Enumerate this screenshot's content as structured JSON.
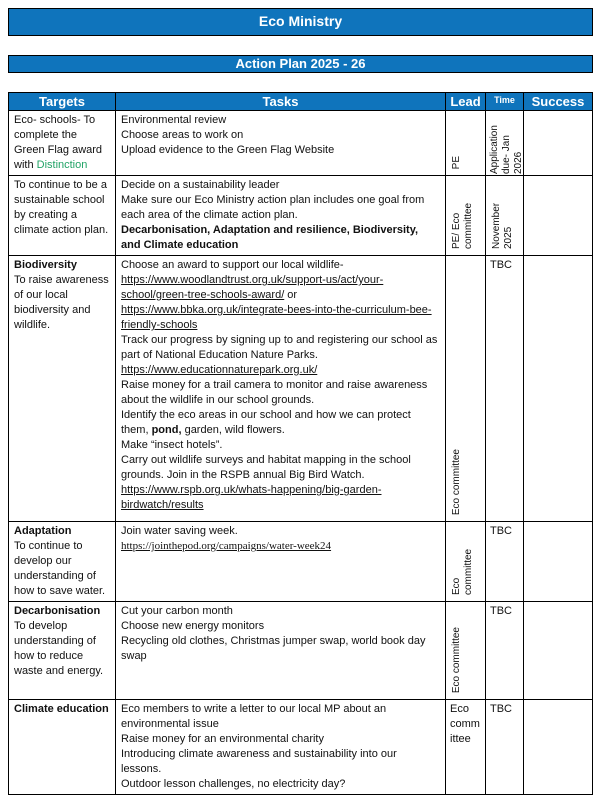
{
  "header": {
    "title": "Eco Ministry",
    "subtitle": "Action Plan 2025 - 26"
  },
  "colors": {
    "bar_blue": "#0f74bc",
    "highlight_green": "#21a366",
    "border_black": "#000000",
    "header_text": "#ffffff"
  },
  "table": {
    "columns": [
      {
        "key": "targets",
        "label": "Targets"
      },
      {
        "key": "tasks",
        "label": "Tasks"
      },
      {
        "key": "lead",
        "label": "Lead"
      },
      {
        "key": "time",
        "label": "Time"
      },
      {
        "key": "success",
        "label": "Success"
      }
    ],
    "rows": [
      {
        "targets": {
          "lines": [
            [
              {
                "t": "Eco- schools- To complete the Green Flag award with "
              },
              {
                "t": "Distinction",
                "s": "green"
              }
            ]
          ]
        },
        "tasks": {
          "lines": [
            [
              {
                "t": "Environmental review"
              }
            ],
            [
              {
                "t": "Choose areas to work on"
              }
            ],
            [
              {
                "t": "Upload evidence to the Green Flag Website"
              }
            ]
          ]
        },
        "lead": {
          "text": "PE",
          "mode": "rot-bottom"
        },
        "time": {
          "text": "Application due- Jan 2026",
          "mode": "rot-fill"
        },
        "success": {
          "text": ""
        }
      },
      {
        "targets": {
          "lines": [
            [
              {
                "t": "To continue to be a sustainable school by creating a climate action plan."
              }
            ]
          ]
        },
        "tasks": {
          "lines": [
            [
              {
                "t": "Decide on a sustainability leader"
              }
            ],
            [
              {
                "t": "Make sure our Eco Ministry action plan includes one goal from each area of the climate action plan."
              }
            ],
            [
              {
                "t": "Decarbonisation, Adaptation and resilience, Biodiversity, and Climate education",
                "s": "b"
              }
            ]
          ]
        },
        "lead": {
          "text": "PE/ Eco committee",
          "mode": "rot-bottom"
        },
        "time": {
          "text": "November 2025",
          "mode": "rot-bottom"
        },
        "success": {
          "text": ""
        }
      },
      {
        "targets": {
          "lines": [
            [
              {
                "t": "Biodiversity",
                "s": "b"
              }
            ],
            [
              {
                "t": "To raise awareness of our local biodiversity and wildlife."
              }
            ]
          ]
        },
        "tasks": {
          "lines": [
            [
              {
                "t": "Choose an award to support our local wildlife-"
              }
            ],
            [
              {
                "t": "https://www.woodlandtrust.org.uk/support-us/act/your-school/green-tree-schools-award/",
                "s": "u"
              },
              {
                "t": " or"
              }
            ],
            [
              {
                "t": "https://www.bbka.org.uk/integrate-bees-into-the-curriculum-bee-friendly-schools",
                "s": "u"
              }
            ],
            [
              {
                "t": "Track our progress by signing up to and registering our school as part of National Education Nature Parks."
              }
            ],
            [
              {
                "t": "https://www.educationnaturepark.org.uk/",
                "s": "u"
              }
            ],
            [
              {
                "t": "Raise money for a trail camera to monitor and raise awareness about the wildlife in our school grounds."
              }
            ],
            [
              {
                "t": "Identify the eco areas in our school and how we can protect them, "
              },
              {
                "t": "pond,",
                "s": "b"
              },
              {
                "t": " garden, wild flowers."
              }
            ],
            [
              {
                "t": "Make “insect hotels”."
              }
            ],
            [
              {
                "t": "Carry out wildlife surveys and habitat mapping in the school grounds. Join in the RSPB annual Big Bird Watch."
              }
            ],
            [
              {
                "t": "https://www.rspb.org.uk/whats-happening/big-garden-birdwatch/results",
                "s": "u"
              }
            ]
          ]
        },
        "lead": {
          "text": "Eco committee",
          "mode": "rot-bottom"
        },
        "time": {
          "text": "TBC",
          "mode": "plain"
        },
        "success": {
          "text": ""
        }
      },
      {
        "targets": {
          "lines": [
            [
              {
                "t": "Adaptation",
                "s": "b"
              }
            ],
            [
              {
                "t": "To continue to develop our understanding of how to save water."
              }
            ]
          ]
        },
        "tasks": {
          "lines": [
            [
              {
                "t": "Join water saving week."
              }
            ],
            [
              {
                "t": "https://jointhepod.org/campaigns/water-week24",
                "s": "su"
              }
            ]
          ]
        },
        "lead": {
          "text": "Eco committee",
          "mode": "rot-bottom"
        },
        "time": {
          "text": "TBC",
          "mode": "plain"
        },
        "success": {
          "text": ""
        }
      },
      {
        "targets": {
          "lines": [
            [
              {
                "t": "Decarbonisation",
                "s": "b"
              }
            ],
            [
              {
                "t": "To develop understanding of how to reduce waste and energy."
              }
            ]
          ]
        },
        "tasks": {
          "lines": [
            [
              {
                "t": "Cut your carbon month"
              }
            ],
            [
              {
                "t": "Choose new energy monitors"
              }
            ],
            [
              {
                "t": "Recycling old clothes, Christmas jumper swap, world book day swap"
              }
            ]
          ]
        },
        "lead": {
          "text": "Eco committee",
          "mode": "rot-bottom"
        },
        "time": {
          "text": "TBC",
          "mode": "plain"
        },
        "success": {
          "text": ""
        }
      },
      {
        "targets": {
          "lines": [
            [
              {
                "t": "Climate education",
                "s": "b"
              }
            ]
          ]
        },
        "tasks": {
          "lines": [
            [
              {
                "t": "Eco members to write a letter to our local MP about an environmental issue"
              }
            ],
            [
              {
                "t": "Raise money for an environmental charity"
              }
            ],
            [
              {
                "t": "Introducing climate awareness and sustainability into our lessons."
              }
            ],
            [
              {
                "t": "Outdoor lesson challenges, no electricity day?"
              }
            ]
          ]
        },
        "lead": {
          "text": "Eco committee",
          "mode": "plain"
        },
        "time": {
          "text": "TBC",
          "mode": "plain"
        },
        "success": {
          "text": ""
        }
      }
    ]
  }
}
